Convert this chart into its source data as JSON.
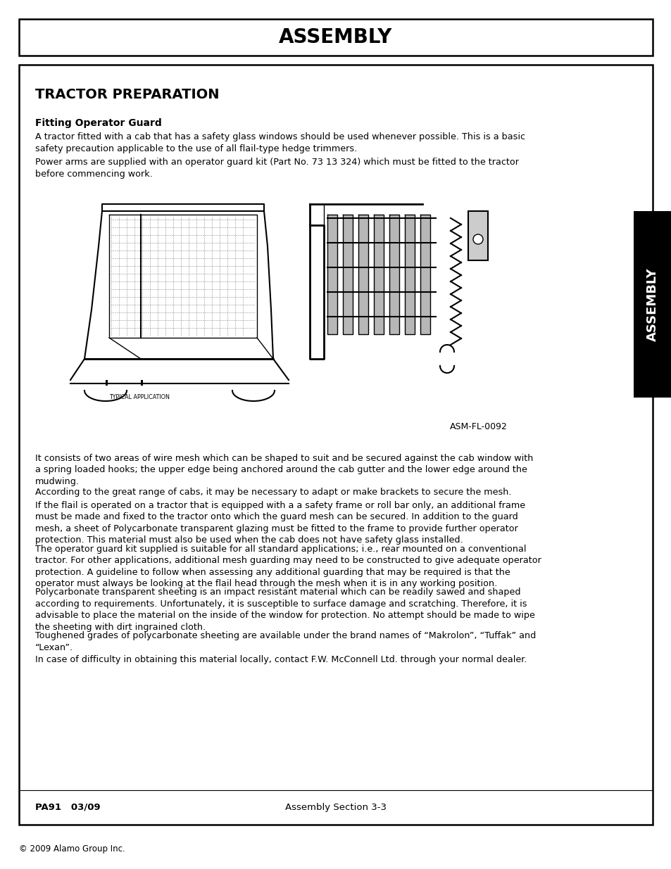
{
  "page_bg": "#ffffff",
  "header_title": "ASSEMBLY",
  "section_title": "TRACTOR PREPARATION",
  "subsection_title": "Fitting Operator Guard",
  "para1": "A tractor fitted with a cab that has a safety glass windows should be used whenever possible. This is a basic\nsafety precaution applicable to the use of all flail-type hedge trimmers.",
  "para2": "Power arms are supplied with an operator guard kit (Part No. 73 13 324) which must be fitted to the tractor\nbefore commencing work.",
  "para3": "It consists of two areas of wire mesh which can be shaped to suit and be secured against the cab window with\na spring loaded hooks; the upper edge being anchored around the cab gutter and the lower edge around the\nmudwing.",
  "para4": "According to the great range of cabs, it may be necessary to adapt or make brackets to secure the mesh.",
  "para5": "If the flail is operated on a tractor that is equipped with a a safety frame or roll bar only, an additional frame\nmust be made and fixed to the tractor onto which the guard mesh can be secured. In addition to the guard\nmesh, a sheet of Polycarbonate transparent glazing must be fitted to the frame to provide further operator\nprotection. This material must also be used when the cab does not have safety glass installed.",
  "para6": "The operator guard kit supplied is suitable for all standard applications; i.e., rear mounted on a conventional\ntractor. For other applications, additional mesh guarding may need to be constructed to give adequate operator\nprotection. A guideline to follow when assessing any additional guarding that may be required is that the\noperator must always be looking at the flail head through the mesh when it is in any working position.",
  "para7": "Polycarbonate transparent sheeting is an impact resistant material which can be readily sawed and shaped\naccording to requirements. Unfortunately, it is susceptible to surface damage and scratching. Therefore, it is\nadvisable to place the material on the inside of the window for protection. No attempt should be made to wipe\nthe sheeting with dirt ingrained cloth.",
  "para8": "Toughened grades of polycarbonate sheeting are available under the brand names of “Makrolon”, “Tuffak” and\n“Lexan”.",
  "para9": "In case of difficulty in obtaining this material locally, contact F.W. McConnell Ltd. through your normal dealer.",
  "image_caption": "ASM-FL-0092",
  "footer_left": "PA91   03/09",
  "footer_center": "Assembly Section 3-3",
  "copyright": "© 2009 Alamo Group Inc.",
  "side_tab_text": "ASSEMBLY"
}
